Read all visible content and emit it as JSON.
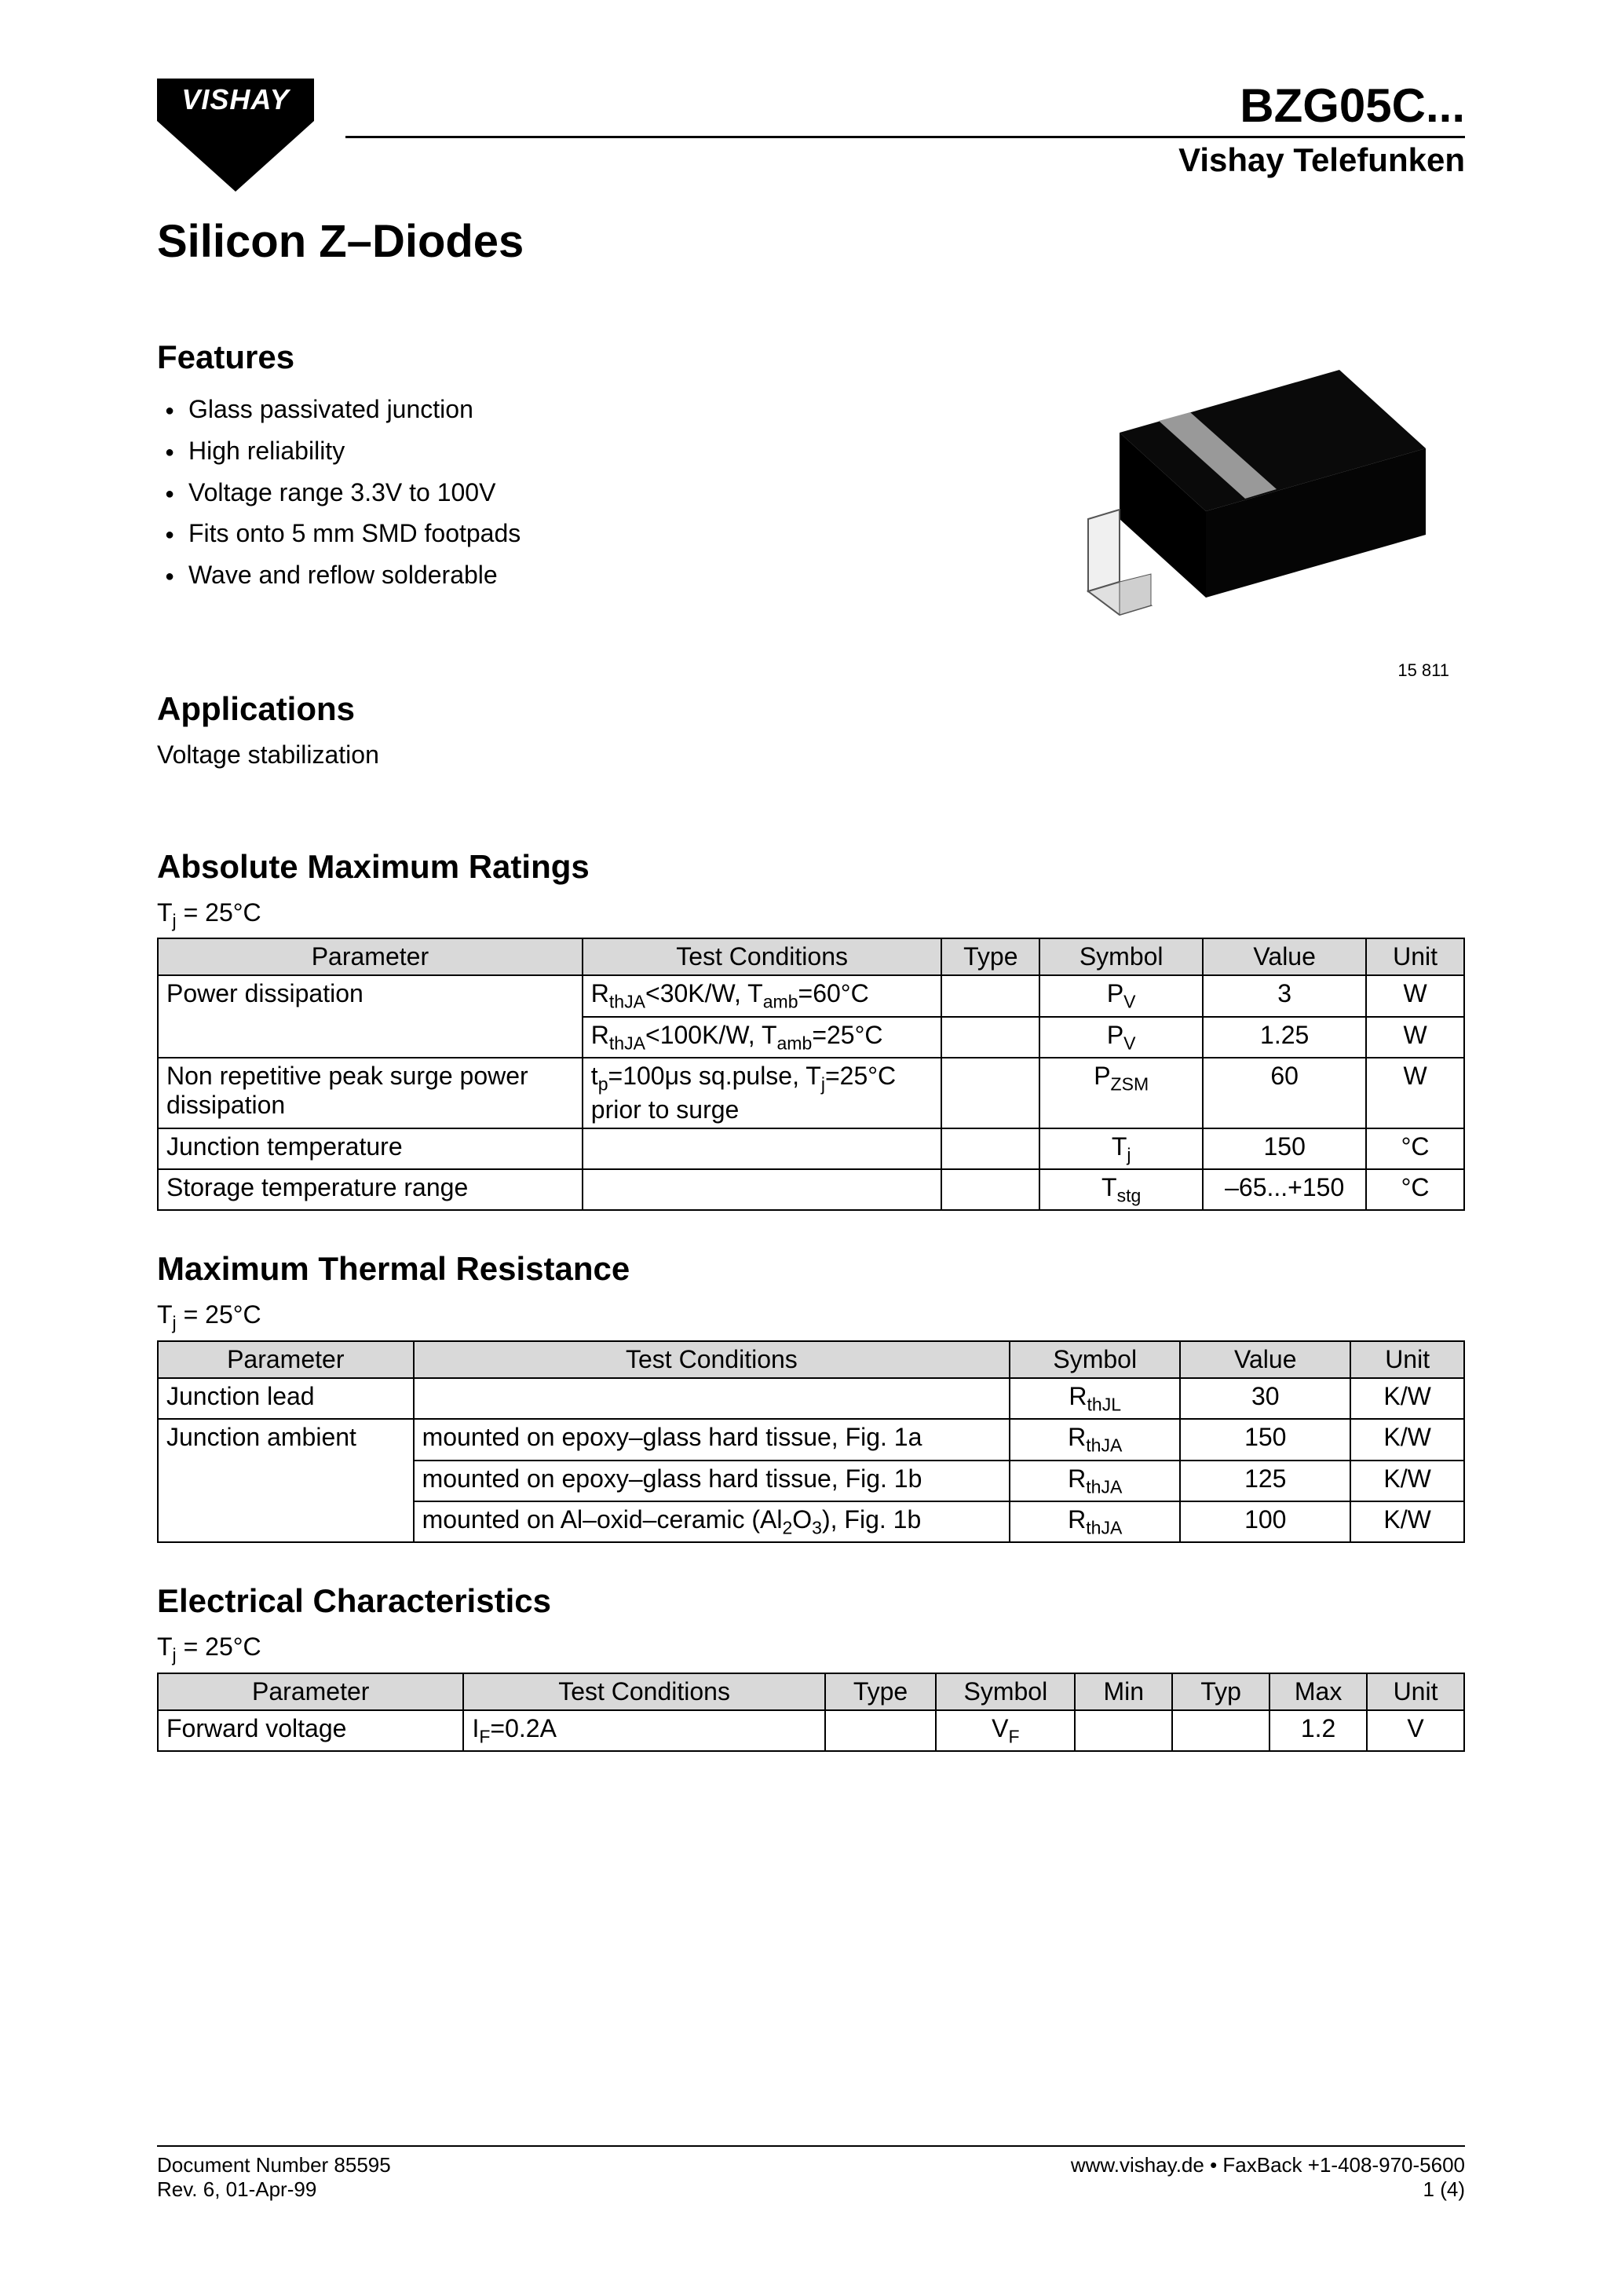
{
  "logo_text": "VISHAY",
  "header": {
    "part_number": "BZG05C...",
    "brand": "Vishay Telefunken"
  },
  "main_title": "Silicon Z–Diodes",
  "features": {
    "heading": "Features",
    "items": [
      "Glass passivated junction",
      "High reliability",
      "Voltage range 3.3V to 100V",
      "Fits onto 5 mm SMD footpads",
      "Wave and reflow solderable"
    ]
  },
  "applications": {
    "heading": "Applications",
    "text": "Voltage stabilization"
  },
  "figure_label": "15 811",
  "abs_max": {
    "heading": "Absolute Maximum Ratings",
    "condition_html": "T<sub>j</sub> = 25°C",
    "columns": [
      "Parameter",
      "Test Conditions",
      "Type",
      "Symbol",
      "Value",
      "Unit"
    ],
    "col_widths": [
      "26%",
      "22%",
      "6%",
      "10%",
      "10%",
      "6%"
    ],
    "rows": [
      {
        "parameter": "Power dissipation",
        "conditions_html": "R<sub>thJA</sub>&lt;30K/W, T<sub>amb</sub>=60°C",
        "type": "",
        "symbol_html": "P<sub>V</sub>",
        "value": "3",
        "unit": "W",
        "rowspan_param": 2
      },
      {
        "parameter": "",
        "conditions_html": "R<sub>thJA</sub>&lt;100K/W, T<sub>amb</sub>=25°C",
        "type": "",
        "symbol_html": "P<sub>V</sub>",
        "value": "1.25",
        "unit": "W"
      },
      {
        "parameter": "Non repetitive peak surge power dissipation",
        "conditions_html": "t<sub>p</sub>=100μs sq.pulse, T<sub>j</sub>=25°C prior to surge",
        "type": "",
        "symbol_html": "P<sub>ZSM</sub>",
        "value": "60",
        "unit": "W"
      },
      {
        "parameter": "Junction temperature",
        "conditions_html": "",
        "type": "",
        "symbol_html": "T<sub>j</sub>",
        "value": "150",
        "unit": "°C"
      },
      {
        "parameter": "Storage temperature range",
        "conditions_html": "",
        "type": "",
        "symbol_html": "T<sub>stg</sub>",
        "value": "–65...+150",
        "unit": "°C"
      }
    ]
  },
  "thermal": {
    "heading": "Maximum Thermal Resistance",
    "condition_html": "T<sub>j</sub> = 25°C",
    "columns": [
      "Parameter",
      "Test Conditions",
      "Symbol",
      "Value",
      "Unit"
    ],
    "col_widths": [
      "18%",
      "42%",
      "12%",
      "12%",
      "8%"
    ],
    "rows": [
      {
        "parameter": "Junction lead",
        "conditions_html": "",
        "symbol_html": "R<sub>thJL</sub>",
        "value": "30",
        "unit": "K/W"
      },
      {
        "parameter": "Junction ambient",
        "conditions_html": "mounted on epoxy–glass hard tissue, Fig. 1a",
        "symbol_html": "R<sub>thJA</sub>",
        "value": "150",
        "unit": "K/W",
        "rowspan_param": 3
      },
      {
        "parameter": "",
        "conditions_html": "mounted on epoxy–glass hard tissue, Fig. 1b",
        "symbol_html": "R<sub>thJA</sub>",
        "value": "125",
        "unit": "K/W"
      },
      {
        "parameter": "",
        "conditions_html": "mounted on Al–oxid–ceramic (Al<sub>2</sub>O<sub>3</sub>), Fig. 1b",
        "symbol_html": "R<sub>thJA</sub>",
        "value": "100",
        "unit": "K/W"
      }
    ]
  },
  "electrical": {
    "heading": "Electrical Characteristics",
    "condition_html": "T<sub>j</sub> = 25°C",
    "columns": [
      "Parameter",
      "Test Conditions",
      "Type",
      "Symbol",
      "Min",
      "Typ",
      "Max",
      "Unit"
    ],
    "col_widths": [
      "22%",
      "26%",
      "8%",
      "10%",
      "7%",
      "7%",
      "7%",
      "7%"
    ],
    "rows": [
      {
        "parameter": "Forward voltage",
        "conditions_html": "I<sub>F</sub>=0.2A",
        "type": "",
        "symbol_html": "V<sub>F</sub>",
        "min": "",
        "typ": "",
        "max": "1.2",
        "unit": "V"
      }
    ]
  },
  "footer": {
    "doc_number": "Document Number 85595",
    "revision": "Rev. 6, 01-Apr-99",
    "url": "www.vishay.de • FaxBack +1-408-970-5600",
    "page": "1 (4)"
  },
  "colors": {
    "header_bg": "#d9d9d9",
    "text": "#000000",
    "page_bg": "#ffffff"
  }
}
